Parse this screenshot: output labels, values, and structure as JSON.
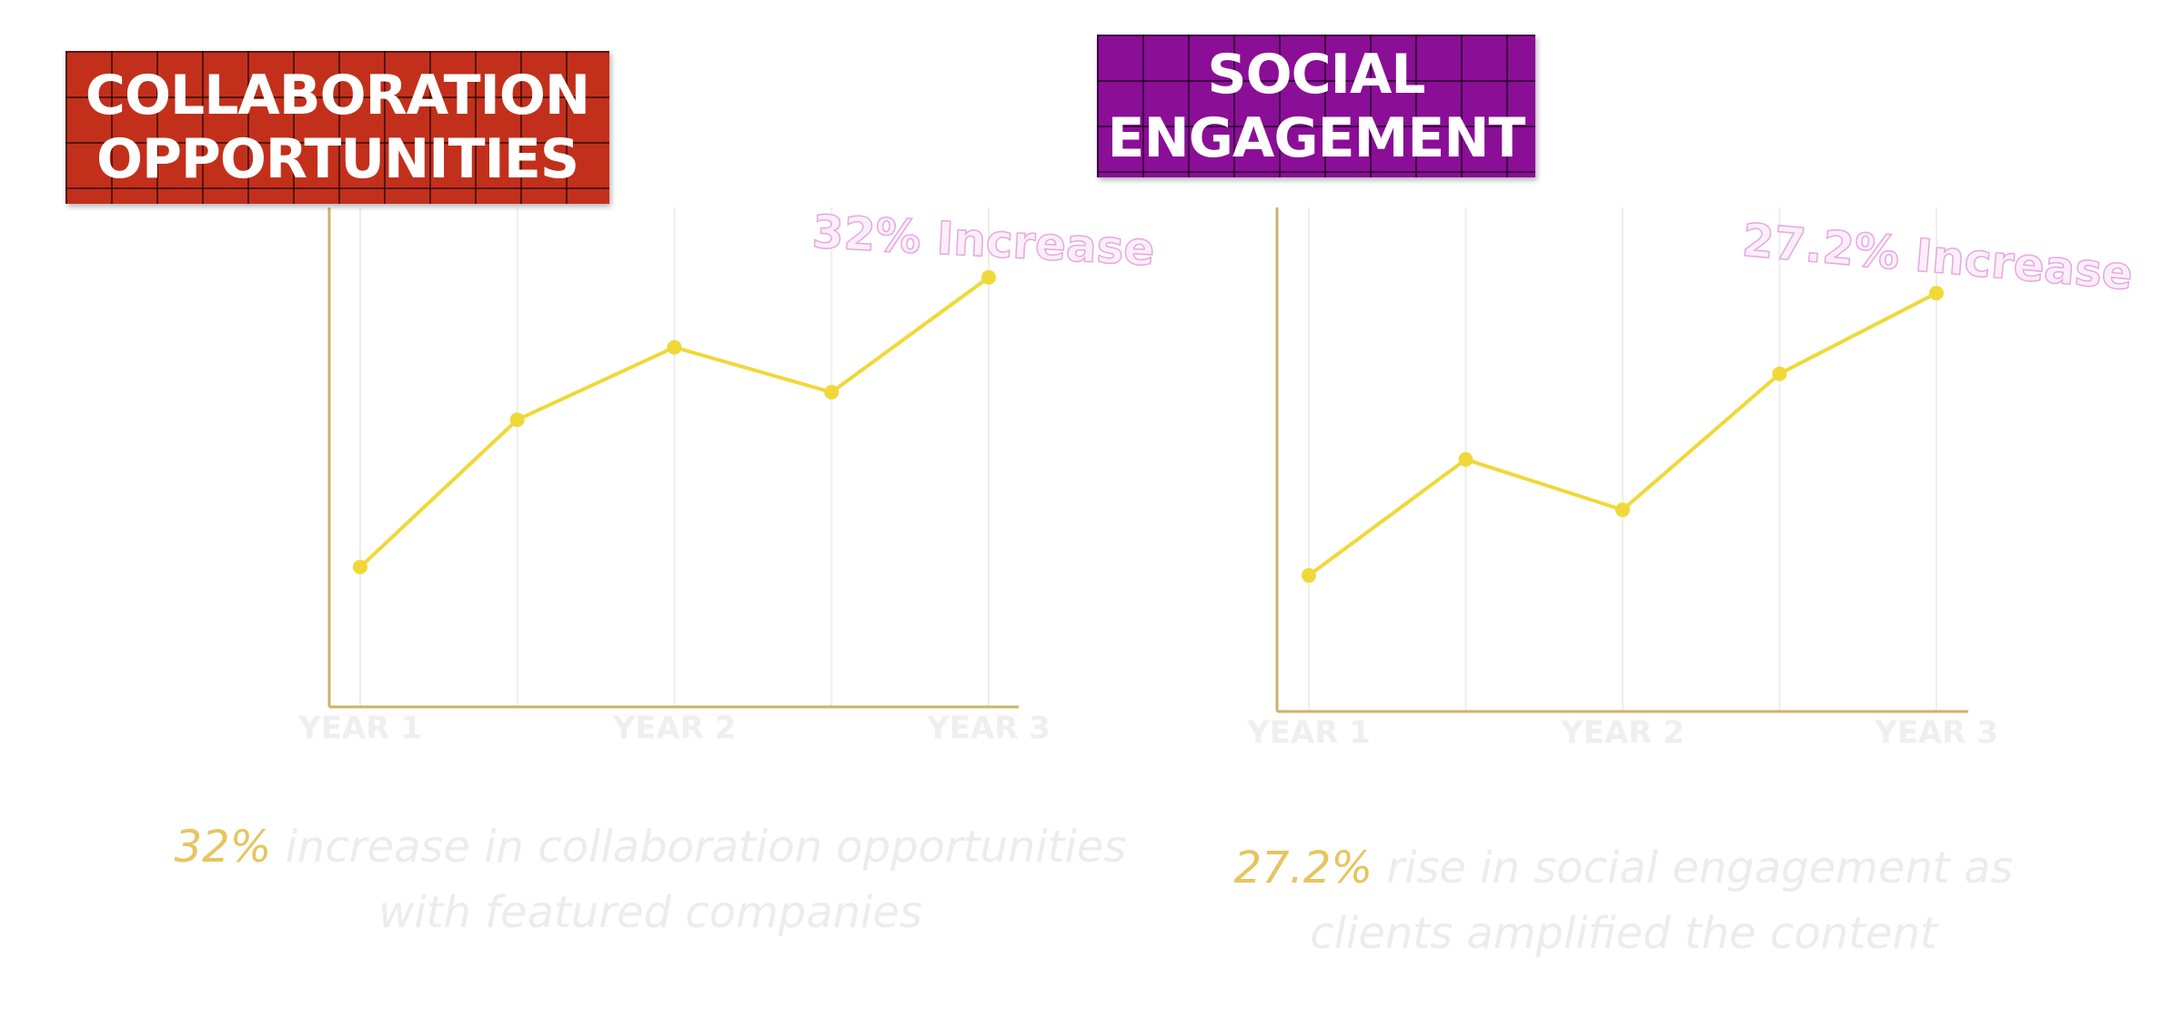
{
  "chart_data": [
    {
      "type": "line",
      "title": "COLLABORATION OPPORTUNITIES",
      "title_color": "#c2301c",
      "categories": [
        "YEAR 1",
        null,
        "YEAR 2",
        null,
        "YEAR 3"
      ],
      "values": [
        28,
        57.5,
        72,
        63,
        86
      ],
      "color": "#f0d838",
      "ylim": [
        0,
        100
      ],
      "annotation": "32% Increase",
      "caption_highlight": "32%",
      "caption": "increase in collaboration opportunities with featured companies"
    },
    {
      "type": "line",
      "title": "SOCIAL ENGAGEMENT",
      "title_color": "#8a0e96",
      "categories": [
        "YEAR 1",
        null,
        "YEAR 2",
        null,
        "YEAR 3"
      ],
      "values": [
        27,
        50,
        40,
        67,
        83
      ],
      "color": "#f0d838",
      "ylim": [
        0,
        100
      ],
      "annotation": "27.2% Increase",
      "caption_highlight": "27.2%",
      "caption": "rise in social engagement as clients amplified the content"
    }
  ]
}
